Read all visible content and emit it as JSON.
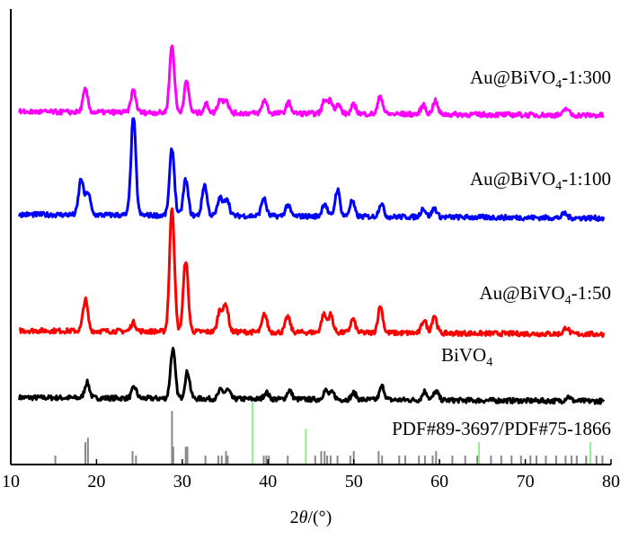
{
  "chart_data": {
    "type": "line",
    "title": "",
    "xlabel": {
      "prefix": "2",
      "italic": "θ",
      "suffix": "/(°)"
    },
    "ylabel": "",
    "xlim": [
      10,
      80
    ],
    "ylim": [
      0,
      100
    ],
    "xticks": [
      "10",
      "20",
      "30",
      "40",
      "50",
      "60",
      "70",
      "80"
    ],
    "grid": false,
    "series": [
      {
        "name": "BiVO",
        "sub": "4",
        "suffix": "",
        "color": "#000000",
        "offset": 15,
        "peakScale": 1.0,
        "peaks": [
          [
            18.9,
            3.5
          ],
          [
            24.4,
            2.5
          ],
          [
            28.9,
            11
          ],
          [
            30.6,
            6
          ],
          [
            34.5,
            2
          ],
          [
            35.3,
            2
          ],
          [
            39.8,
            1.5
          ],
          [
            42.5,
            2
          ],
          [
            46.7,
            2
          ],
          [
            47.5,
            1.5
          ],
          [
            50.0,
            1.5
          ],
          [
            53.3,
            3
          ],
          [
            58.3,
            2
          ],
          [
            59.6,
            2
          ],
          [
            75.0,
            1
          ]
        ]
      },
      {
        "name": "Au@BiVO",
        "sub": "4",
        "suffix": "-1:50",
        "color": "#ff0000",
        "offset": 30,
        "peakScale": 1.0,
        "peaks": [
          [
            18.7,
            7
          ],
          [
            24.3,
            2
          ],
          [
            28.8,
            28
          ],
          [
            30.4,
            16
          ],
          [
            34.4,
            5
          ],
          [
            35.1,
            6
          ],
          [
            39.6,
            4
          ],
          [
            42.3,
            3.5
          ],
          [
            46.5,
            4
          ],
          [
            47.3,
            4
          ],
          [
            49.9,
            3
          ],
          [
            53.1,
            6
          ],
          [
            58.2,
            3
          ],
          [
            59.4,
            4
          ],
          [
            74.8,
            1.5
          ]
        ]
      },
      {
        "name": "Au@BiVO",
        "sub": "4",
        "suffix": "-1:100",
        "color": "#0000ff",
        "offset": 56,
        "peakScale": 1.0,
        "peaks": [
          [
            18.2,
            8
          ],
          [
            19.0,
            5
          ],
          [
            24.3,
            22
          ],
          [
            28.8,
            15
          ],
          [
            30.4,
            8
          ],
          [
            32.6,
            7
          ],
          [
            34.4,
            4
          ],
          [
            35.2,
            4
          ],
          [
            39.5,
            4
          ],
          [
            42.3,
            2.5
          ],
          [
            46.6,
            3
          ],
          [
            48.1,
            6
          ],
          [
            49.8,
            3.5
          ],
          [
            53.2,
            3
          ],
          [
            58.1,
            2
          ],
          [
            59.4,
            2
          ],
          [
            74.6,
            1
          ]
        ]
      },
      {
        "name": "Au@BiVO",
        "sub": "4",
        "suffix": "-1:300",
        "color": "#ff00ff",
        "offset": 79,
        "peakScale": 1.0,
        "peaks": [
          [
            18.7,
            5
          ],
          [
            24.3,
            5
          ],
          [
            28.8,
            15
          ],
          [
            30.5,
            7
          ],
          [
            32.8,
            2
          ],
          [
            34.4,
            3
          ],
          [
            35.1,
            3
          ],
          [
            39.6,
            3
          ],
          [
            42.4,
            2.5
          ],
          [
            46.6,
            3
          ],
          [
            47.3,
            3
          ],
          [
            48.2,
            2
          ],
          [
            50.0,
            2
          ],
          [
            53.1,
            4
          ],
          [
            58.1,
            2
          ],
          [
            59.5,
            3
          ],
          [
            74.8,
            1.5
          ]
        ]
      }
    ],
    "reference": {
      "label": "PDF#89-3697/PDF#75-1866",
      "gray_color": "#888888",
      "green_color": "#90ee90",
      "gray_lines": [
        [
          15.2,
          2
        ],
        [
          18.7,
          5
        ],
        [
          19.0,
          6
        ],
        [
          24.2,
          3
        ],
        [
          24.6,
          2
        ],
        [
          28.8,
          12
        ],
        [
          28.95,
          4
        ],
        [
          30.4,
          4
        ],
        [
          30.6,
          4
        ],
        [
          32.7,
          2
        ],
        [
          34.2,
          2
        ],
        [
          34.6,
          2
        ],
        [
          35.1,
          3
        ],
        [
          35.3,
          2
        ],
        [
          39.5,
          2
        ],
        [
          39.8,
          2
        ],
        [
          40.1,
          2
        ],
        [
          42.3,
          2
        ],
        [
          45.5,
          2
        ],
        [
          46.2,
          3
        ],
        [
          46.6,
          3
        ],
        [
          46.9,
          2
        ],
        [
          47.3,
          2
        ],
        [
          48.1,
          2
        ],
        [
          49.6,
          2
        ],
        [
          50.0,
          3
        ],
        [
          52.9,
          3
        ],
        [
          53.3,
          2
        ],
        [
          55.3,
          2
        ],
        [
          56.0,
          2
        ],
        [
          57.6,
          2
        ],
        [
          58.3,
          2
        ],
        [
          59.2,
          2
        ],
        [
          59.6,
          3
        ],
        [
          61.5,
          2
        ],
        [
          63.0,
          2
        ],
        [
          64.4,
          2
        ],
        [
          66.0,
          2
        ],
        [
          67.2,
          2
        ],
        [
          68.4,
          2
        ],
        [
          69.5,
          2
        ],
        [
          70.6,
          2
        ],
        [
          71.3,
          2
        ],
        [
          72.4,
          2
        ],
        [
          73.6,
          2
        ],
        [
          74.7,
          2
        ],
        [
          75.4,
          2
        ],
        [
          76.0,
          2
        ],
        [
          77.1,
          2
        ],
        [
          78.3,
          2
        ],
        [
          79.0,
          2
        ]
      ],
      "green_lines": [
        [
          38.2,
          14
        ],
        [
          44.4,
          8
        ],
        [
          64.6,
          5
        ],
        [
          77.6,
          5
        ]
      ]
    }
  }
}
